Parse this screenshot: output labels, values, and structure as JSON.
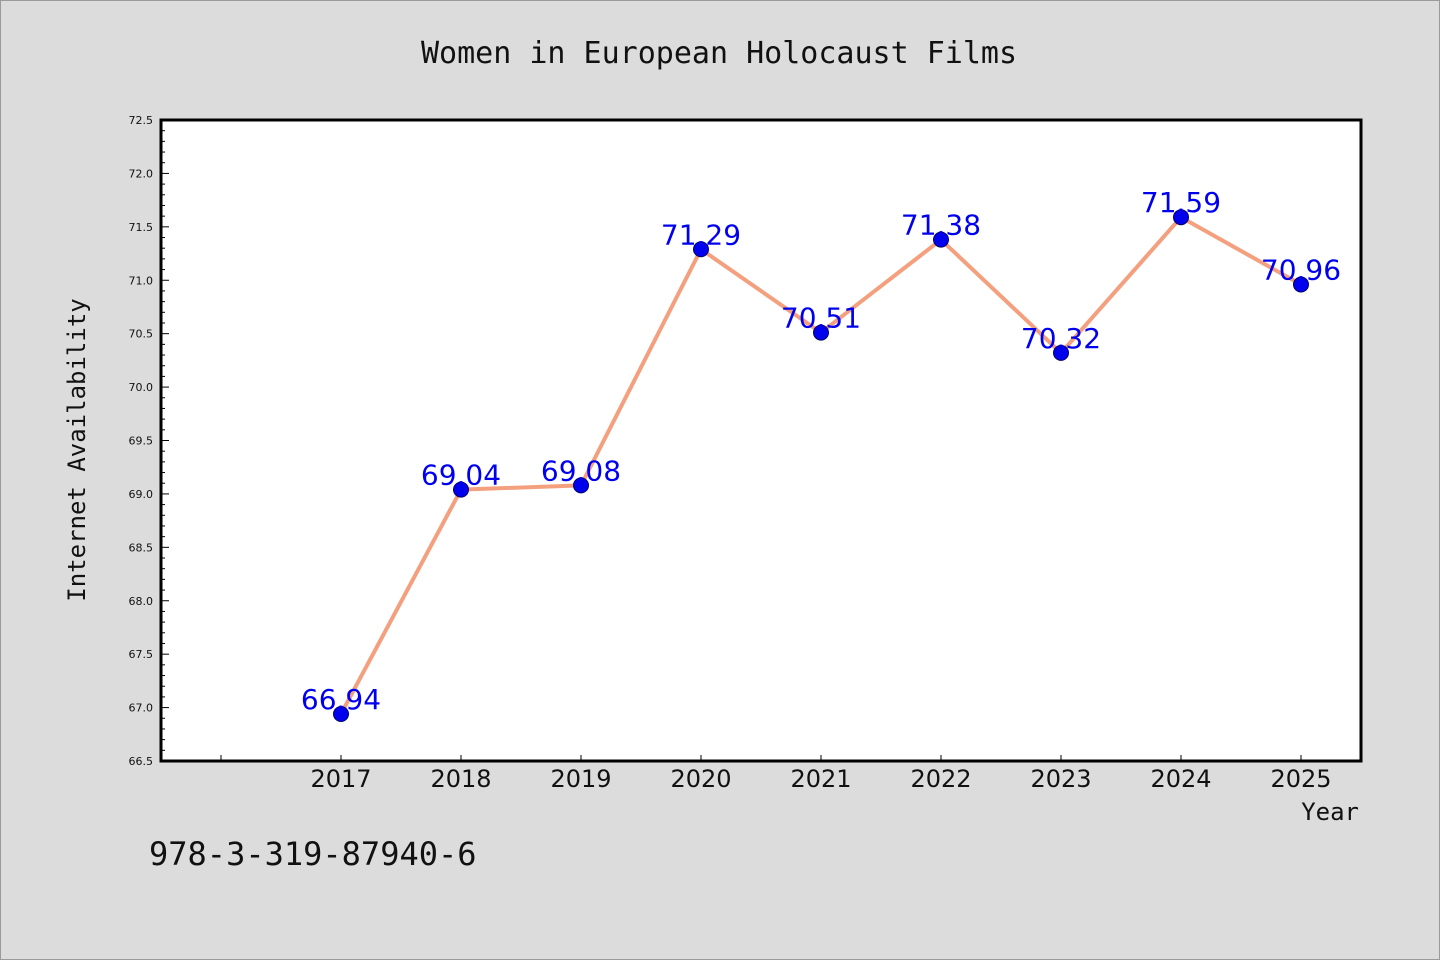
{
  "chart_data": {
    "type": "line",
    "title": "Women in European Holocaust Films",
    "xlabel": "Year",
    "ylabel": "Internet Availability",
    "categories": [
      "2017",
      "2018",
      "2019",
      "2020",
      "2021",
      "2022",
      "2023",
      "2024",
      "2025"
    ],
    "series": [
      {
        "values": [
          66.94,
          69.04,
          69.08,
          71.29,
          70.51,
          71.38,
          70.32,
          71.59,
          70.96
        ]
      }
    ],
    "data_labels": [
      "66.94",
      "69.04",
      "69.08",
      "71.29",
      "70.51",
      "71.38",
      "70.32",
      "71.59",
      "70.96"
    ],
    "ylim": [
      66.5,
      72.5
    ],
    "y_ticks": [
      "66.5",
      "67.0",
      "67.5",
      "68.0",
      "68.5",
      "69.0",
      "69.5",
      "70.0",
      "70.5",
      "71.0",
      "71.5",
      "72.0",
      "72.5"
    ],
    "grid": false,
    "legend": "none",
    "colors": {
      "line": "#f4a07f",
      "marker": "#0000ee",
      "marker_edge": "#000066",
      "data_label": "#0000ee",
      "background": "#dcdcdc",
      "plot_background": "#ffffff"
    }
  },
  "footnote": "978-3-319-87940-6"
}
